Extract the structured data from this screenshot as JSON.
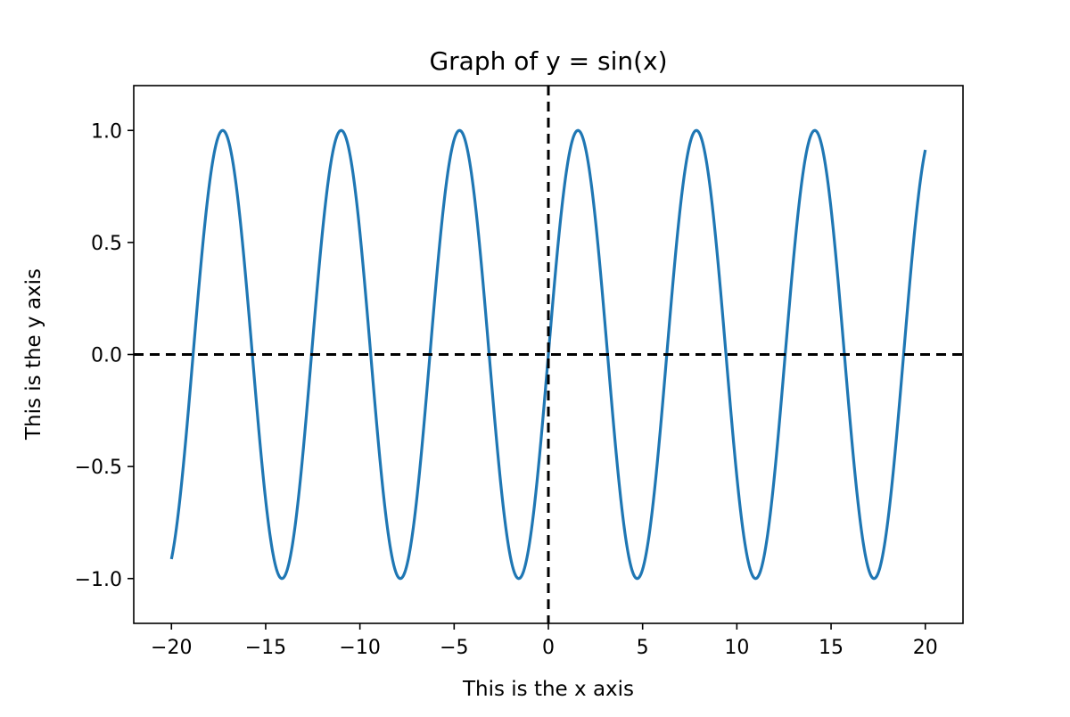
{
  "chart_data": {
    "type": "line",
    "title": "Graph of y = sin(x)",
    "xlabel": "This is the x axis",
    "ylabel": "This is the y axis",
    "xlim": [
      -22,
      22
    ],
    "ylim": [
      -1.2,
      1.2
    ],
    "xticks": [
      -20,
      -15,
      -10,
      -5,
      0,
      5,
      10,
      15,
      20
    ],
    "xtick_labels": [
      "−20",
      "−15",
      "−10",
      "−5",
      "0",
      "5",
      "10",
      "15",
      "20"
    ],
    "yticks": [
      -1.0,
      -0.5,
      0.0,
      0.5,
      1.0
    ],
    "ytick_labels": [
      "−1.0",
      "−0.5",
      "0.0",
      "0.5",
      "1.0"
    ],
    "grid": false,
    "series": [
      {
        "function": "sin",
        "x_range": [
          -20,
          20
        ],
        "color": "#1f77b4"
      }
    ],
    "reference_lines": [
      {
        "orientation": "horizontal",
        "value": 0,
        "style": "dashed",
        "color": "#000000"
      },
      {
        "orientation": "vertical",
        "value": 0,
        "style": "dashed",
        "color": "#000000"
      }
    ]
  }
}
